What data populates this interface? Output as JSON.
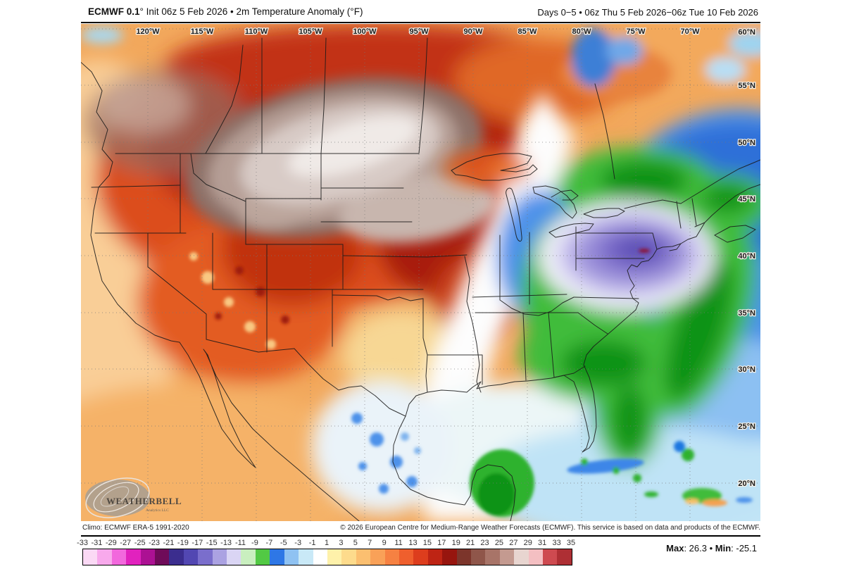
{
  "header": {
    "title_bold": "ECMWF 0.1",
    "title_rest": "° Init 06z 5 Feb 2026 • 2m Temperature Anomaly (°F)",
    "right": "Days 0−5 • 06z Thu 5 Feb 2026−06z Tue 10 Feb 2026"
  },
  "map": {
    "lon_labels": [
      "120°W",
      "115°W",
      "110°W",
      "105°W",
      "100°W",
      "95°W",
      "90°W",
      "85°W",
      "80°W",
      "75°W",
      "70°W"
    ],
    "lat_labels": [
      "60°N",
      "55°N",
      "50°N",
      "45°N",
      "40°N",
      "35°N",
      "30°N",
      "25°N",
      "20°N"
    ],
    "logo": {
      "name": "WeatherBELL",
      "subtext": "Analytics LLC"
    },
    "key_colors": {
      "warm_core": "#F0EAE7",
      "warm": "#DC4D1F",
      "cold_core": "#584BB2",
      "cold_extreme_spot": "#8B1538",
      "ocean_cold": "#4E92EA"
    }
  },
  "footer": {
    "climo": "Climo: ECMWF ERA-5 1991-2020",
    "copyright": "© 2026 European Centre for Medium-Range Weather Forecasts (ECMWF). This service is based on data and products of the ECMWF."
  },
  "colorbar": {
    "ticks": [
      -33,
      -31,
      -29,
      -27,
      -25,
      -23,
      -21,
      -19,
      -17,
      -15,
      -13,
      -11,
      -9,
      -7,
      -5,
      -3,
      -1,
      1,
      3,
      5,
      7,
      9,
      11,
      13,
      15,
      17,
      19,
      21,
      23,
      25,
      27,
      29,
      31,
      33,
      35
    ],
    "cell_colors": [
      "#FBD9F5",
      "#F8A9EC",
      "#F268DD",
      "#E122BE",
      "#AC1193",
      "#6F0B59",
      "#3B2D8E",
      "#5247B2",
      "#7A6ECC",
      "#ABA2E2",
      "#DAD5F4",
      "#C9EFBF",
      "#52C944",
      "#2E77E6",
      "#8FC2F2",
      "#C9E9F7",
      "#FFFFFF",
      "#FEF1AA",
      "#FDDB8C",
      "#FBBF70",
      "#F9A158",
      "#F68142",
      "#EF5F2D",
      "#DD3D1D",
      "#BE2414",
      "#97150E",
      "#7C352B",
      "#8F564A",
      "#A87468",
      "#C49A90",
      "#E8D5D0",
      "#F4BFC2",
      "#CE4A50",
      "#AE2F34"
    ]
  },
  "stats": {
    "max_label": "Max",
    "max_value": ": 26.3 ",
    "sep": "• ",
    "min_label": "Min",
    "min_value": ": -25.1"
  }
}
